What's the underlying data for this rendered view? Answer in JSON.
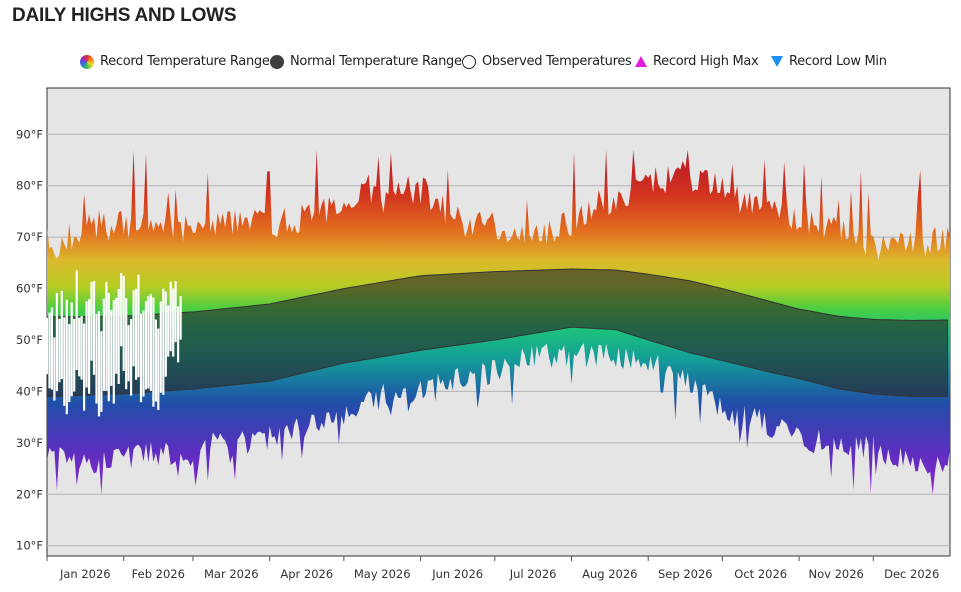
{
  "title": "DAILY HIGHS AND LOWS",
  "legend": [
    {
      "label": "Record Temperature Range",
      "icon": "rainbow-circle-icon"
    },
    {
      "label": "Normal Temperature Range",
      "icon": "dark-circle-icon"
    },
    {
      "label": "Observed Temperatures",
      "icon": "open-circle-icon"
    },
    {
      "label": "Record High Max",
      "icon": "magenta-triangle-up-icon",
      "color": "#e21ce0"
    },
    {
      "label": "Record Low Min",
      "icon": "blue-triangle-down-icon",
      "color": "#1d8ff2"
    }
  ],
  "chart_data": {
    "type": "area",
    "title": "DAILY HIGHS AND LOWS",
    "x_unit": "day of year 2026",
    "ylim": [
      8,
      99
    ],
    "y_ticks": [
      10,
      20,
      30,
      40,
      50,
      60,
      70,
      80,
      90
    ],
    "y_tick_labels": [
      "10°F",
      "20°F",
      "30°F",
      "40°F",
      "50°F",
      "60°F",
      "70°F",
      "80°F",
      "90°F"
    ],
    "month_labels": [
      "Jan 2026",
      "Feb 2026",
      "Mar 2026",
      "Apr 2026",
      "May 2026",
      "Jun 2026",
      "Jul 2026",
      "Aug 2026",
      "Sep 2026",
      "Oct 2026",
      "Nov 2026",
      "Dec 2026"
    ],
    "month_start_days": [
      0,
      31,
      59,
      90,
      120,
      151,
      181,
      212,
      243,
      273,
      304,
      334,
      365
    ],
    "series": [
      {
        "name": "Record High",
        "x": [
          0,
          10,
          20,
          31,
          40,
          50,
          59,
          70,
          80,
          90,
          100,
          110,
          120,
          128,
          135,
          145,
          151,
          160,
          170,
          181,
          190,
          200,
          212,
          220,
          230,
          243,
          250,
          258,
          265,
          273,
          280,
          290,
          300,
          304,
          315,
          325,
          334,
          345,
          355,
          365
        ],
        "y": [
          67,
          70,
          72,
          72,
          73,
          72,
          71,
          72,
          73,
          72,
          73,
          75,
          76,
          80,
          77,
          79,
          79,
          75,
          72,
          72,
          71,
          71,
          73,
          76,
          77,
          80,
          81,
          82,
          80,
          79,
          77,
          75,
          74,
          73,
          72,
          70,
          68,
          69,
          68,
          70
        ]
      },
      {
        "name": "Normal High",
        "x": [
          0,
          30,
          60,
          90,
          120,
          151,
          181,
          212,
          230,
          243,
          260,
          273,
          290,
          304,
          320,
          334,
          350,
          365
        ],
        "y": [
          54.5,
          54.6,
          55.5,
          57,
          60,
          62.5,
          63.3,
          63.8,
          63.6,
          62.8,
          61.5,
          60,
          57.8,
          56,
          54.6,
          54,
          53.8,
          53.9
        ]
      },
      {
        "name": "Normal Low",
        "x": [
          0,
          30,
          60,
          90,
          120,
          151,
          181,
          212,
          230,
          243,
          260,
          273,
          290,
          304,
          320,
          334,
          350,
          365
        ],
        "y": [
          39,
          39.5,
          40.5,
          42,
          45.5,
          48,
          50,
          52.5,
          52,
          50,
          47.5,
          46,
          44,
          42.5,
          40.5,
          39.5,
          39,
          39
        ]
      },
      {
        "name": "Record Low",
        "x": [
          0,
          10,
          20,
          31,
          40,
          50,
          59,
          70,
          80,
          90,
          100,
          110,
          120,
          128,
          135,
          145,
          151,
          160,
          170,
          181,
          190,
          200,
          212,
          220,
          230,
          243,
          250,
          258,
          265,
          273,
          280,
          290,
          300,
          304,
          315,
          325,
          334,
          345,
          355,
          365
        ],
        "y": [
          28,
          26,
          26,
          27,
          28,
          28,
          29,
          30,
          30,
          31,
          33,
          34,
          35,
          37,
          39,
          40,
          40,
          42,
          43,
          44,
          46,
          47,
          47,
          47,
          47,
          46,
          44,
          43,
          40,
          37,
          35,
          34,
          32,
          31,
          30,
          29,
          29,
          27,
          26,
          27
        ]
      },
      {
        "name": "Observed High",
        "x": [
          0,
          3,
          6,
          9,
          12,
          15,
          18,
          21,
          24,
          27,
          30,
          33,
          36,
          39,
          42,
          45,
          48,
          51,
          54
        ],
        "y": [
          56,
          54,
          58,
          52,
          60,
          55,
          62,
          53,
          59,
          57,
          63,
          52,
          61,
          56,
          58,
          55,
          59,
          60,
          56
        ]
      },
      {
        "name": "Observed Low",
        "x": [
          0,
          3,
          6,
          9,
          12,
          15,
          18,
          21,
          24,
          27,
          30,
          33,
          36,
          39,
          42,
          45,
          48,
          51,
          54
        ],
        "y": [
          42,
          37,
          40,
          35,
          45,
          39,
          44,
          36,
          41,
          38,
          46,
          40,
          43,
          37,
          41,
          35,
          44,
          46,
          49
        ]
      }
    ],
    "record_high_peak": 87,
    "record_low_min": 20
  }
}
